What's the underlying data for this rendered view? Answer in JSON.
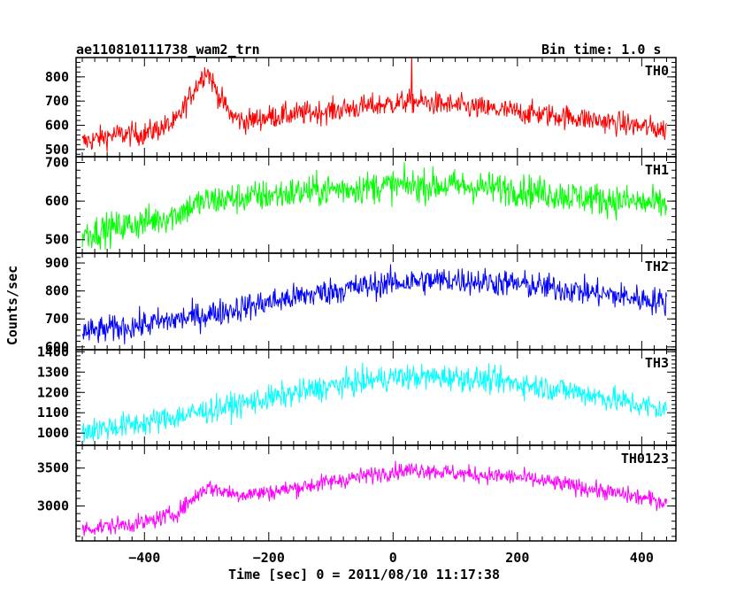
{
  "chart_data": {
    "type": "line",
    "title": "ae110810111738_wam2_trn",
    "subtitle": "Bin time: 1.0 s",
    "xlabel": "Time [sec] 0 = 2011/08/10 11:17:38",
    "ylabel": "Counts/sec",
    "xlim": [
      -510,
      455
    ],
    "x_ticks": [
      -400,
      -200,
      0,
      200,
      400
    ],
    "grid": false,
    "panels": [
      {
        "name": "TH0",
        "color": "#ff0000",
        "ylim": [
          470,
          880
        ],
        "y_ticks": [
          500,
          600,
          700,
          800
        ],
        "x": [
          -500,
          -450,
          -400,
          -350,
          -320,
          -300,
          -280,
          -260,
          -240,
          -200,
          -100,
          0,
          30,
          100,
          200,
          300,
          440
        ],
        "y": [
          530,
          560,
          565,
          610,
          750,
          830,
          720,
          640,
          615,
          635,
          660,
          690,
          700,
          680,
          655,
          630,
          580
        ],
        "noise": 35
      },
      {
        "name": "TH1",
        "color": "#00ff00",
        "ylim": [
          465,
          715
        ],
        "y_ticks": [
          500,
          600,
          700
        ],
        "x": [
          -500,
          -400,
          -350,
          -320,
          -300,
          -200,
          -100,
          0,
          100,
          200,
          300,
          440
        ],
        "y": [
          515,
          545,
          565,
          590,
          600,
          615,
          630,
          640,
          640,
          630,
          610,
          590
        ],
        "noise": 30
      },
      {
        "name": "TH2",
        "color": "#0000ff",
        "ylim": [
          590,
          935
        ],
        "y_ticks": [
          600,
          700,
          800,
          900
        ],
        "x": [
          -500,
          -400,
          -300,
          -200,
          -100,
          0,
          100,
          200,
          300,
          440
        ],
        "y": [
          650,
          680,
          715,
          760,
          800,
          830,
          840,
          825,
          800,
          760
        ],
        "noise": 35
      },
      {
        "name": "TH3",
        "color": "#00ffff",
        "ylim": [
          940,
          1410
        ],
        "y_ticks": [
          1000,
          1100,
          1200,
          1300,
          1400
        ],
        "x": [
          -500,
          -400,
          -300,
          -200,
          -100,
          0,
          100,
          200,
          300,
          440
        ],
        "y": [
          1010,
          1050,
          1110,
          1170,
          1230,
          1275,
          1275,
          1245,
          1200,
          1110
        ],
        "noise": 45
      },
      {
        "name": "TH0123",
        "color": "#ff00ff",
        "ylim": [
          2540,
          3800
        ],
        "y_ticks": [
          3000,
          3500
        ],
        "x": [
          -500,
          -400,
          -350,
          -300,
          -250,
          -200,
          -100,
          0,
          50,
          100,
          200,
          300,
          440
        ],
        "y": [
          2700,
          2780,
          2900,
          3250,
          3150,
          3180,
          3320,
          3460,
          3480,
          3430,
          3380,
          3250,
          3050
        ],
        "noise": 80
      }
    ]
  }
}
